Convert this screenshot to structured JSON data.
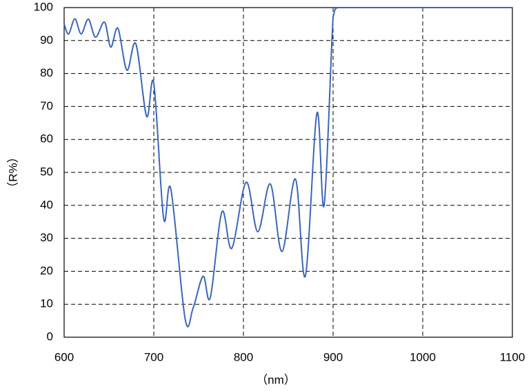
{
  "chart_data": {
    "type": "line",
    "xlabel": "（nm）",
    "ylabel": "（R%）",
    "x": [
      600,
      605,
      612,
      619,
      627,
      635,
      645,
      652,
      660,
      670,
      680,
      692,
      700,
      711,
      719,
      735,
      744,
      755,
      763,
      776,
      787,
      803,
      816,
      830,
      843,
      858,
      869,
      882,
      890,
      900,
      905,
      920,
      1100
    ],
    "series": [
      {
        "name": "R%",
        "color": "#3a66b8",
        "values": [
          95,
          92,
          96.6,
          92,
          96.5,
          91,
          95.6,
          88,
          93.7,
          81,
          89,
          67,
          77,
          36,
          45,
          5.5,
          9,
          18.5,
          12,
          38,
          27,
          47,
          32,
          46.5,
          26,
          48,
          18.5,
          68,
          40,
          97,
          100,
          100,
          100
        ]
      }
    ],
    "xlim": [
      600,
      1100
    ],
    "xticks": [
      600,
      700,
      800,
      900,
      1000,
      1100
    ],
    "ylim": [
      0,
      100
    ],
    "yticks": [
      0,
      10,
      20,
      30,
      40,
      50,
      60,
      70,
      80,
      90,
      100
    ],
    "grid": true
  }
}
